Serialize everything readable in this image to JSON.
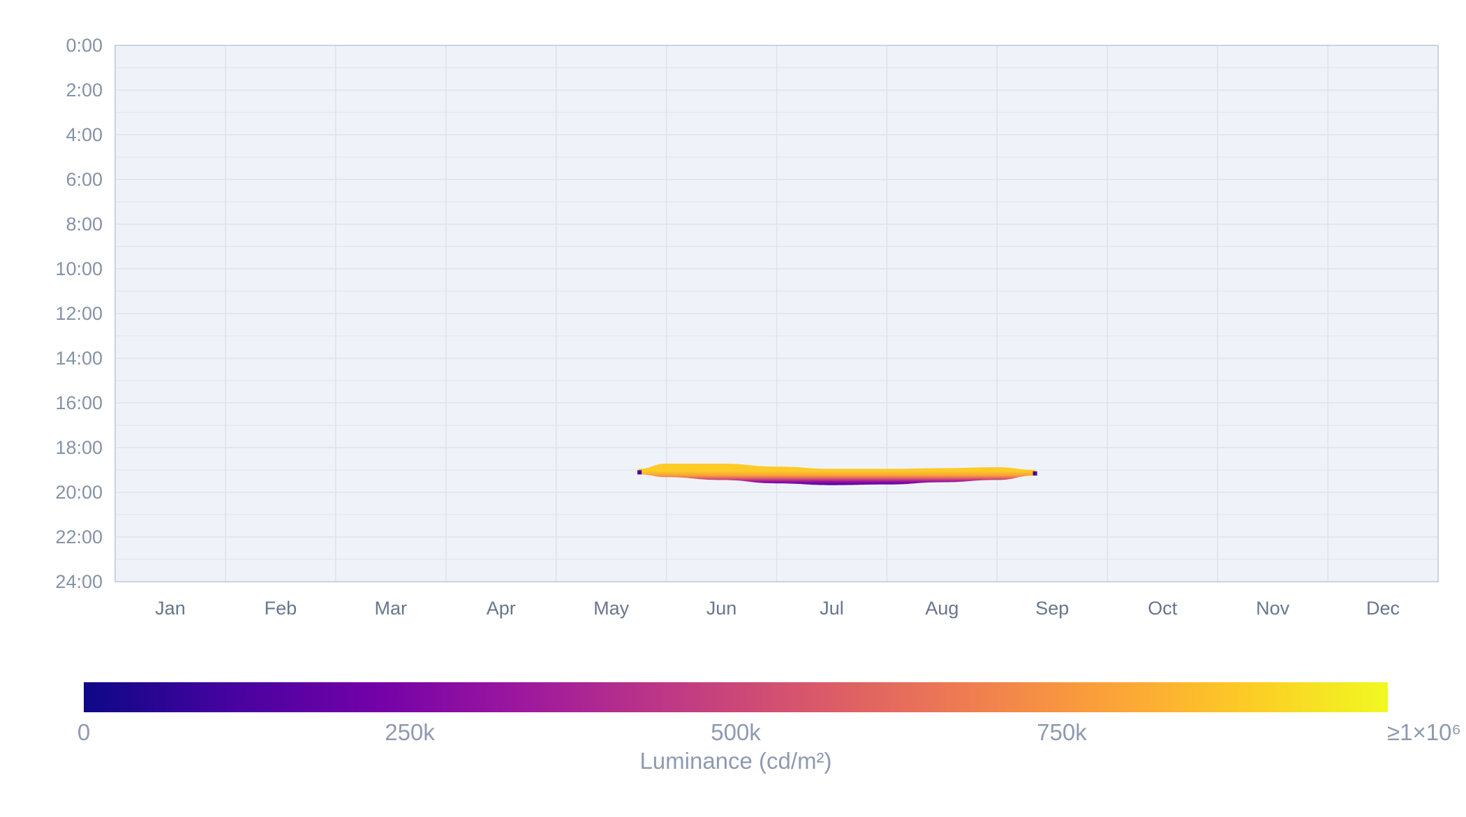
{
  "chart_data": {
    "type": "heatmap",
    "title": "",
    "xlabel": "",
    "ylabel": "",
    "x_categories": [
      "Jan",
      "Feb",
      "Mar",
      "Apr",
      "May",
      "Jun",
      "Jul",
      "Aug",
      "Sep",
      "Oct",
      "Nov",
      "Dec"
    ],
    "y_ticks": [
      "0:00",
      "2:00",
      "4:00",
      "6:00",
      "8:00",
      "10:00",
      "12:00",
      "14:00",
      "16:00",
      "18:00",
      "20:00",
      "22:00",
      "24:00"
    ],
    "y_range_hours": [
      0,
      24
    ],
    "y_reversed": true,
    "grid": true,
    "plot_background": "#eff3f9",
    "grid_color": "#dde3ec",
    "colorscale": "Plasma",
    "colorscale_stops": [
      "#0d0887",
      "#46039f",
      "#7201a8",
      "#9c179e",
      "#bd3786",
      "#d8576b",
      "#ed7953",
      "#fb9f3a",
      "#fdca26",
      "#f0f921"
    ],
    "colorbar": {
      "title": "Luminance (cd/m²)",
      "range": [
        0,
        1000000
      ],
      "orientation": "horizontal",
      "placement": "bottom",
      "ticks": [
        {
          "value": 0,
          "label": "0"
        },
        {
          "value": 250000,
          "label": "250k"
        },
        {
          "value": 500000,
          "label": "500k"
        },
        {
          "value": 750000,
          "label": "750k"
        },
        {
          "value": 1000000,
          "label": "≥1×10⁶"
        }
      ]
    },
    "glare_band": {
      "start_month": 4.75,
      "end_month": 8.35,
      "profile": [
        {
          "month": 4.75,
          "top_hour": 18.95,
          "bottom_hour": 19.2
        },
        {
          "month": 5.0,
          "top_hour": 18.72,
          "bottom_hour": 19.32
        },
        {
          "month": 5.5,
          "top_hour": 18.72,
          "bottom_hour": 19.45
        },
        {
          "month": 6.0,
          "top_hour": 18.85,
          "bottom_hour": 19.6
        },
        {
          "month": 6.5,
          "top_hour": 18.95,
          "bottom_hour": 19.68
        },
        {
          "month": 7.0,
          "top_hour": 18.95,
          "bottom_hour": 19.65
        },
        {
          "month": 7.5,
          "top_hour": 18.92,
          "bottom_hour": 19.55
        },
        {
          "month": 8.0,
          "top_hour": 18.88,
          "bottom_hour": 19.45
        },
        {
          "month": 8.35,
          "top_hour": 19.0,
          "bottom_hour": 19.25
        }
      ],
      "peak_luminance": 850000,
      "min_luminance": 0
    }
  }
}
